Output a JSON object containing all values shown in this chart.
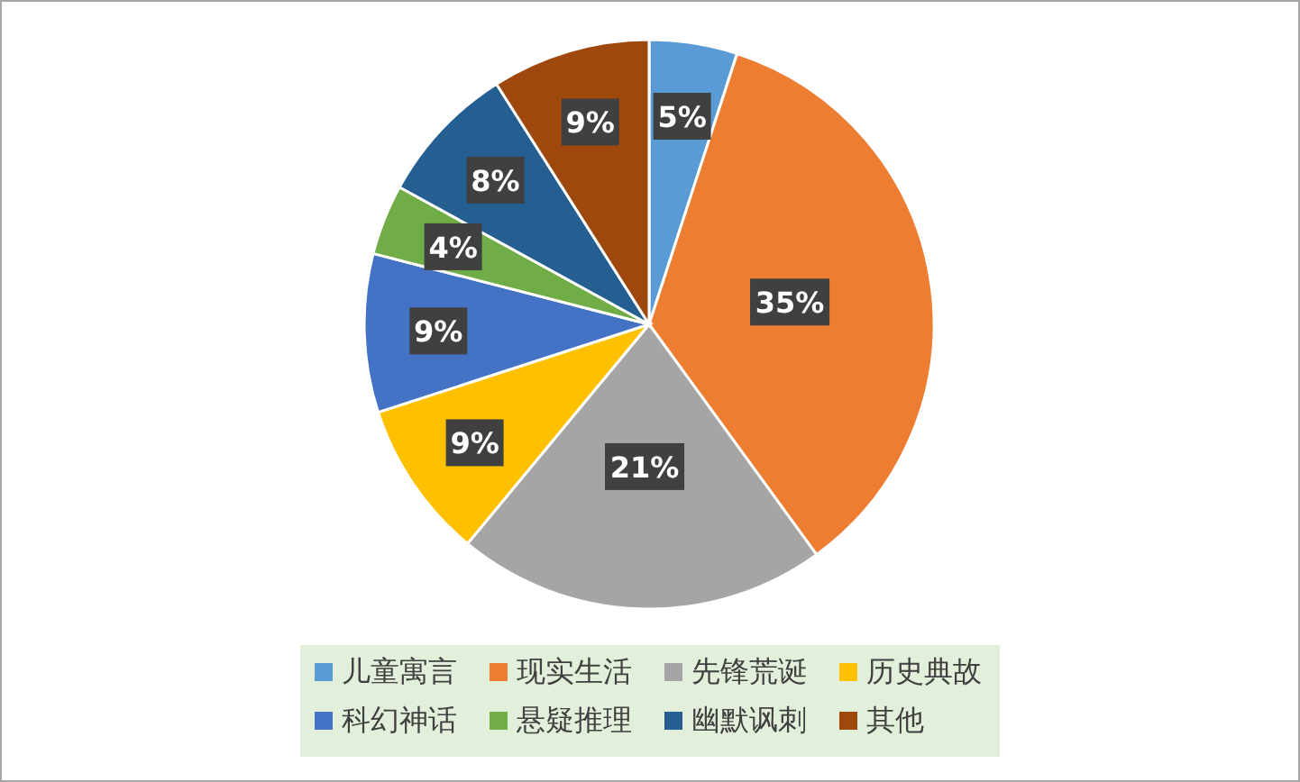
{
  "chart_data": {
    "type": "pie",
    "categories": [
      "儿童寓言",
      "现实生活",
      "先锋荒诞",
      "历史典故",
      "科幻神话",
      "悬疑推理",
      "幽默讽刺",
      "其他"
    ],
    "values": [
      5,
      35,
      21,
      9,
      9,
      4,
      8,
      9
    ],
    "colors": [
      "#5b9bd5",
      "#ed7d31",
      "#a5a5a5",
      "#ffc000",
      "#4472c4",
      "#70ad47",
      "#255e91",
      "#9e480e"
    ],
    "value_labels": [
      "5%",
      "35%",
      "21%",
      "9%",
      "9%",
      "4%",
      "8%",
      "9%"
    ],
    "legend": "bottom"
  }
}
